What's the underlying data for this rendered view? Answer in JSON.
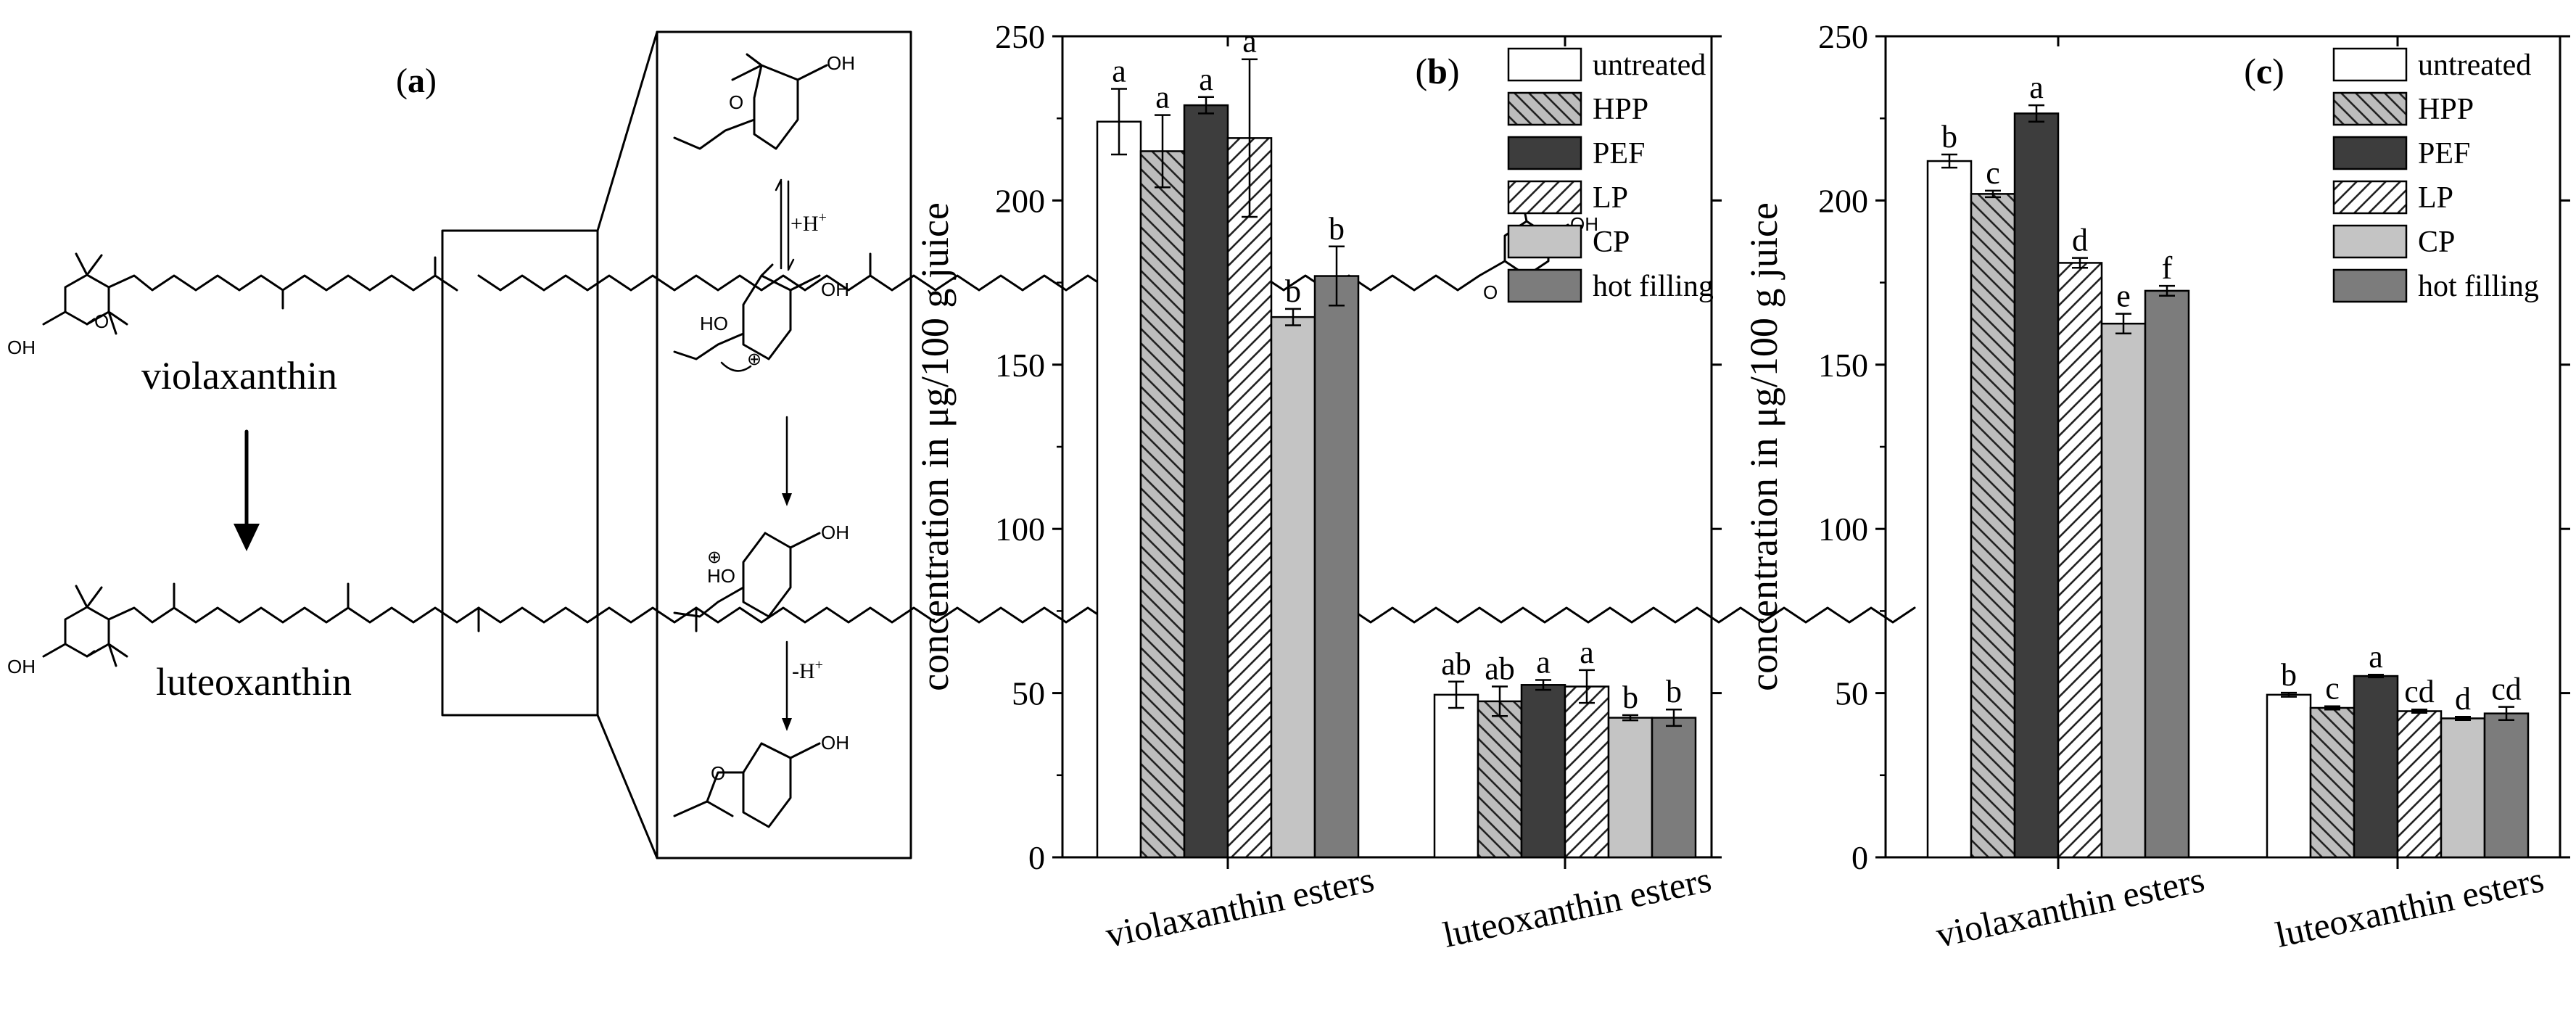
{
  "panels": {
    "a": {
      "label": "a",
      "compound_top": "violaxanthin",
      "compound_bottom": "luteoxanthin",
      "mechanism_steps": [
        "+H",
        "-H"
      ],
      "superscript": "+",
      "atom_labels": {
        "oh": "OH",
        "ho": "HO",
        "o": "O",
        "charge": "⊕"
      }
    }
  },
  "chart_data": [
    {
      "type": "bar",
      "panel_label": "b",
      "title": "",
      "xlabel": "",
      "ylabel": "concentration in μg/100 g juice",
      "ylim": [
        0,
        250
      ],
      "yticks": [
        0,
        50,
        100,
        150,
        200,
        250
      ],
      "grid": false,
      "legend_position": "top-right",
      "categories": [
        "violaxanthin esters",
        "luteoxanthin esters"
      ],
      "series": [
        {
          "name": "untreated",
          "values": [
            224,
            49.5
          ],
          "errors": [
            10,
            4
          ],
          "letters": [
            "a",
            "ab"
          ],
          "fill": "#ffffff",
          "pattern": "none"
        },
        {
          "name": "HPP",
          "values": [
            215,
            47.5
          ],
          "errors": [
            11,
            4.5
          ],
          "letters": [
            "a",
            "ab"
          ],
          "fill": "#bdbdbd",
          "pattern": "backslash"
        },
        {
          "name": "PEF",
          "values": [
            229,
            52.5
          ],
          "errors": [
            2.5,
            1.5
          ],
          "letters": [
            "a",
            "a"
          ],
          "fill": "#3d3d3d",
          "pattern": "none"
        },
        {
          "name": "LP",
          "values": [
            219,
            52
          ],
          "errors": [
            24,
            5
          ],
          "letters": [
            "a",
            "a"
          ],
          "fill": "#ffffff",
          "pattern": "slash"
        },
        {
          "name": "CP",
          "values": [
            164.5,
            42.5
          ],
          "errors": [
            2.5,
            0.8
          ],
          "letters": [
            "b",
            "b"
          ],
          "fill": "#c4c4c4",
          "pattern": "none"
        },
        {
          "name": "hot filling",
          "values": [
            177,
            42.5
          ],
          "errors": [
            9,
            2.5
          ],
          "letters": [
            "b",
            "b"
          ],
          "fill": "#7c7c7c",
          "pattern": "none"
        }
      ]
    },
    {
      "type": "bar",
      "panel_label": "c",
      "title": "",
      "xlabel": "",
      "ylabel": "concentration in μg/100 g juice",
      "ylim": [
        0,
        250
      ],
      "yticks": [
        0,
        50,
        100,
        150,
        200,
        250
      ],
      "grid": false,
      "legend_position": "top-right",
      "categories": [
        "violaxanthin esters",
        "luteoxanthin esters"
      ],
      "series": [
        {
          "name": "untreated",
          "values": [
            212,
            49.5
          ],
          "errors": [
            2,
            0.6
          ],
          "letters": [
            "b",
            "b"
          ],
          "fill": "#ffffff",
          "pattern": "none"
        },
        {
          "name": "HPP",
          "values": [
            202,
            45.5
          ],
          "errors": [
            1,
            0.5
          ],
          "letters": [
            "c",
            "c"
          ],
          "fill": "#bdbdbd",
          "pattern": "backslash"
        },
        {
          "name": "PEF",
          "values": [
            226.5,
            55.2
          ],
          "errors": [
            2.5,
            0.4
          ],
          "letters": [
            "a",
            "a"
          ],
          "fill": "#3d3d3d",
          "pattern": "none"
        },
        {
          "name": "LP",
          "values": [
            181,
            44.5
          ],
          "errors": [
            1.5,
            0.5
          ],
          "letters": [
            "d",
            "cd"
          ],
          "fill": "#ffffff",
          "pattern": "slash"
        },
        {
          "name": "CP",
          "values": [
            162.5,
            42.3
          ],
          "errors": [
            3,
            0.5
          ],
          "letters": [
            "e",
            "d"
          ],
          "fill": "#c4c4c4",
          "pattern": "none"
        },
        {
          "name": "hot filling",
          "values": [
            172.5,
            43.8
          ],
          "errors": [
            1.5,
            2
          ],
          "letters": [
            "f",
            "cd"
          ],
          "fill": "#7c7c7c",
          "pattern": "none"
        }
      ]
    }
  ]
}
